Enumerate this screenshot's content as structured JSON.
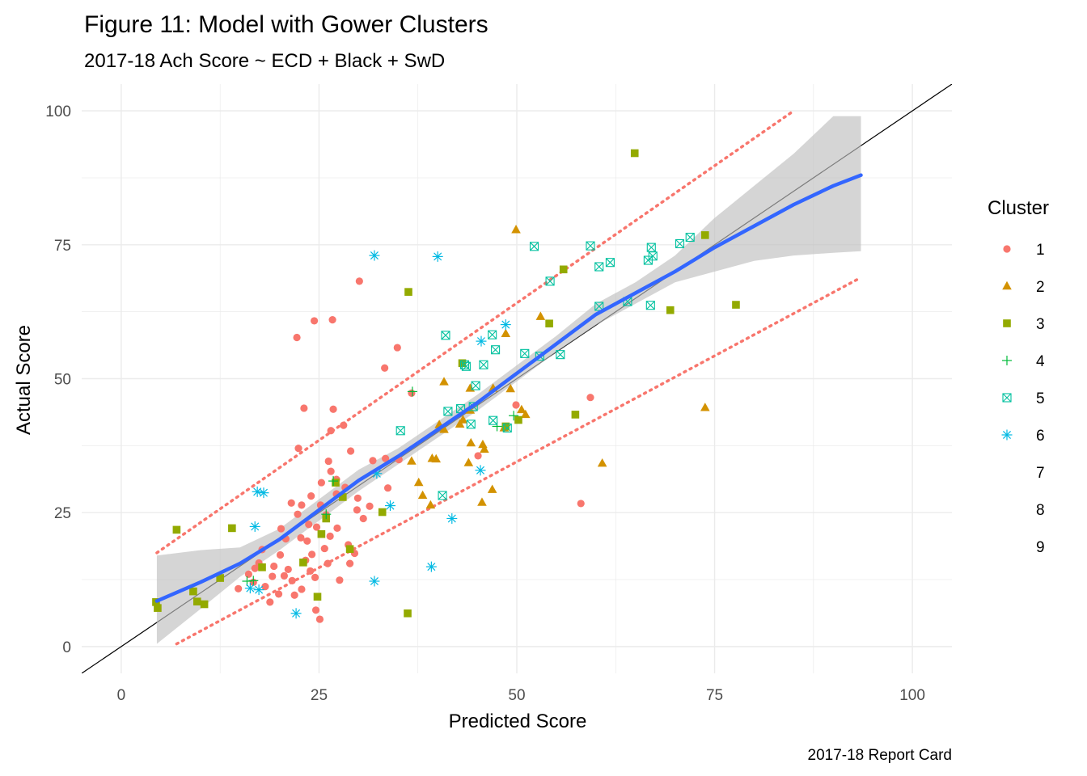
{
  "chart_data": {
    "type": "scatter",
    "title": "Figure 11: Model with Gower Clusters",
    "subtitle": "2017-18 Ach Score ~ ECD + Black + SwD",
    "xlabel": "Predicted Score",
    "ylabel": "Actual Score",
    "caption": "2017-18 Report Card",
    "xlim": [
      -5,
      105
    ],
    "ylim": [
      -5,
      105
    ],
    "x_ticks": [
      "0",
      "25",
      "50",
      "75",
      "100"
    ],
    "y_ticks": [
      "0",
      "25",
      "50",
      "75",
      "100"
    ],
    "grid": true,
    "legend": {
      "title": "Cluster",
      "placement": "right",
      "entries": [
        {
          "label": "1",
          "shape": "circle",
          "color": "#F8766D"
        },
        {
          "label": "2",
          "shape": "triangle",
          "color": "#D39200"
        },
        {
          "label": "3",
          "shape": "square",
          "color": "#93AA00"
        },
        {
          "label": "4",
          "shape": "plus",
          "color": "#00BA38"
        },
        {
          "label": "5",
          "shape": "boxx",
          "color": "#00C19F"
        },
        {
          "label": "6",
          "shape": "asterisk",
          "color": "#00B9E3"
        },
        {
          "label": "7",
          "shape": "none",
          "color": "#619CFF"
        },
        {
          "label": "8",
          "shape": "none",
          "color": "#DB72FB"
        },
        {
          "label": "9",
          "shape": "none",
          "color": "#FF61C3"
        }
      ]
    },
    "reference_line": {
      "slope": 1,
      "intercept": 0,
      "color": "#000000"
    },
    "smooth": {
      "color": "#3366FF",
      "band_color": "#BFBFBF",
      "x": [
        4.5,
        10,
        15,
        20,
        25,
        30,
        35,
        40,
        45,
        50,
        55,
        60,
        65,
        70,
        75,
        80,
        85,
        90,
        93.5
      ],
      "y": [
        8.5,
        12,
        15.5,
        20,
        25.5,
        31,
        35.5,
        40.5,
        45.5,
        51,
        56.5,
        62,
        66,
        70,
        74.5,
        78.5,
        82.5,
        86,
        88
      ],
      "lower": [
        0.5,
        7,
        13,
        18,
        23.5,
        29,
        34,
        39,
        44,
        49.5,
        55,
        60,
        64,
        68,
        70,
        72,
        73,
        73.5,
        73.8
      ],
      "upper": [
        17,
        18,
        18.5,
        22,
        27.5,
        33,
        37,
        42,
        47,
        52.5,
        58,
        64,
        68,
        73,
        80,
        86,
        92,
        99,
        99
      ]
    },
    "prediction_bounds": {
      "color": "#F8766D",
      "upper": {
        "x": [
          4.5,
          85
        ],
        "y": [
          17.5,
          100
        ]
      },
      "lower": {
        "x": [
          7,
          93
        ],
        "y": [
          0.5,
          68.5
        ]
      }
    },
    "series": [
      {
        "name": "1",
        "points": [
          [
            14.8,
            10.8
          ],
          [
            16.1,
            13.5
          ],
          [
            16.7,
            12
          ],
          [
            17.4,
            15.6
          ],
          [
            18.2,
            11.2
          ],
          [
            19.3,
            15
          ],
          [
            20.1,
            17.1
          ],
          [
            20.8,
            20.1
          ],
          [
            21.5,
            26.8
          ],
          [
            22.3,
            24.7
          ],
          [
            22.8,
            26.4
          ],
          [
            23.5,
            19.7
          ],
          [
            24.1,
            17.2
          ],
          [
            24.7,
            22.3
          ],
          [
            25.3,
            30.6
          ],
          [
            25.9,
            24.6
          ],
          [
            26.5,
            32.7
          ],
          [
            27.2,
            28.5
          ],
          [
            28.1,
            41.3
          ],
          [
            29,
            36.5
          ],
          [
            29.8,
            25.5
          ],
          [
            21.6,
            12.3
          ],
          [
            22.8,
            10.7
          ],
          [
            23.9,
            14.1
          ],
          [
            24.6,
            6.8
          ],
          [
            25.1,
            5.1
          ],
          [
            26.1,
            15.5
          ],
          [
            27.6,
            12.4
          ],
          [
            28.7,
            19
          ],
          [
            20.2,
            22
          ],
          [
            21.1,
            14.4
          ],
          [
            23.1,
            44.5
          ],
          [
            22.4,
            37
          ],
          [
            26.5,
            40.3
          ],
          [
            26.8,
            44.3
          ],
          [
            24.4,
            60.8
          ],
          [
            26.7,
            61
          ],
          [
            22.2,
            57.7
          ],
          [
            30.1,
            68.2
          ],
          [
            34.9,
            55.8
          ],
          [
            33.3,
            52
          ],
          [
            31.8,
            34.7
          ],
          [
            35.1,
            34.9
          ],
          [
            33.4,
            35.1
          ],
          [
            36.7,
            47.3
          ],
          [
            45.1,
            35.6
          ],
          [
            49.9,
            45.1
          ],
          [
            59.3,
            46.5
          ],
          [
            58.1,
            26.7
          ],
          [
            29.9,
            27.7
          ],
          [
            18.8,
            8.3
          ],
          [
            17.8,
            18.1
          ],
          [
            23.3,
            16.1
          ],
          [
            25.7,
            18.3
          ],
          [
            19.9,
            9.8
          ],
          [
            27.2,
            31.2
          ],
          [
            29.5,
            17.4
          ],
          [
            31.4,
            26.2
          ],
          [
            24,
            28.1
          ],
          [
            16.9,
            14.6
          ],
          [
            19.1,
            13.1
          ],
          [
            21.9,
            9.6
          ],
          [
            25.2,
            26.4
          ],
          [
            26.2,
            34.6
          ],
          [
            28.3,
            29.7
          ],
          [
            23.7,
            22.8
          ],
          [
            30.6,
            23.9
          ],
          [
            33.7,
            29.6
          ],
          [
            27.3,
            22.1
          ],
          [
            22.7,
            20.3
          ],
          [
            20.6,
            13.2
          ],
          [
            24.5,
            12.9
          ],
          [
            28.9,
            15.5
          ],
          [
            26.4,
            20.6
          ]
        ]
      },
      {
        "name": "2",
        "points": [
          [
            49.9,
            77.8
          ],
          [
            53,
            61.6
          ],
          [
            48.6,
            58.4
          ],
          [
            44.1,
            48.2
          ],
          [
            43.2,
            42.3
          ],
          [
            42.8,
            41.5
          ],
          [
            40.8,
            49.4
          ],
          [
            39.3,
            35.1
          ],
          [
            39.8,
            35
          ],
          [
            37.6,
            30.6
          ],
          [
            38.1,
            28.2
          ],
          [
            39.1,
            26.4
          ],
          [
            36.7,
            34.6
          ],
          [
            44.2,
            38
          ],
          [
            43.9,
            34.3
          ],
          [
            45.7,
            37.7
          ],
          [
            45.9,
            36.8
          ],
          [
            46.9,
            29.3
          ],
          [
            45.6,
            26.9
          ],
          [
            48.4,
            40.8
          ],
          [
            51.1,
            43.3
          ],
          [
            49.2,
            48.1
          ],
          [
            47,
            48.2
          ],
          [
            50.6,
            44.2
          ],
          [
            40.2,
            41.4
          ],
          [
            60.8,
            34.2
          ],
          [
            73.8,
            44.6
          ],
          [
            40.8,
            40.5
          ],
          [
            44.1,
            44.1
          ]
        ]
      },
      {
        "name": "3",
        "points": [
          [
            7,
            21.8
          ],
          [
            4.4,
            8.3
          ],
          [
            4.6,
            7.2
          ],
          [
            9.1,
            10.3
          ],
          [
            9.6,
            8.4
          ],
          [
            10.5,
            7.9
          ],
          [
            12.5,
            12.8
          ],
          [
            14,
            22.1
          ],
          [
            17.8,
            14.8
          ],
          [
            23,
            15.7
          ],
          [
            24.8,
            9.3
          ],
          [
            25.3,
            21
          ],
          [
            25.9,
            23.9
          ],
          [
            27.1,
            30.6
          ],
          [
            28,
            27.9
          ],
          [
            28.9,
            18.2
          ],
          [
            33,
            25.1
          ],
          [
            36.3,
            66.2
          ],
          [
            36.2,
            6.2
          ],
          [
            43.1,
            52.9
          ],
          [
            48.6,
            41.1
          ],
          [
            50.2,
            42.3
          ],
          [
            54.1,
            60.3
          ],
          [
            55.9,
            70.4
          ],
          [
            57.4,
            43.3
          ],
          [
            64.9,
            92.1
          ],
          [
            69.4,
            62.8
          ],
          [
            73.8,
            76.8
          ],
          [
            77.7,
            63.8
          ]
        ]
      },
      {
        "name": "4",
        "points": [
          [
            36.8,
            47.6
          ],
          [
            49.6,
            43.1
          ],
          [
            16.7,
            12.3
          ],
          [
            15.9,
            12.2
          ],
          [
            26.8,
            30.9
          ],
          [
            25.9,
            24.7
          ],
          [
            47.5,
            41.1
          ]
        ]
      },
      {
        "name": "5",
        "points": [
          [
            41,
            58.1
          ],
          [
            43.4,
            52.6
          ],
          [
            44.8,
            48.7
          ],
          [
            45.8,
            52.6
          ],
          [
            46.9,
            58.2
          ],
          [
            47.3,
            55.4
          ],
          [
            48.8,
            40.8
          ],
          [
            51,
            54.7
          ],
          [
            52.2,
            74.7
          ],
          [
            52.9,
            54.2
          ],
          [
            54.2,
            68.2
          ],
          [
            55.5,
            54.5
          ],
          [
            59.3,
            74.8
          ],
          [
            60.4,
            63.5
          ],
          [
            60.4,
            70.9
          ],
          [
            61.8,
            71.7
          ],
          [
            64,
            64.4
          ],
          [
            66.6,
            72.1
          ],
          [
            67,
            74.5
          ],
          [
            67.2,
            72.9
          ],
          [
            66.9,
            63.7
          ],
          [
            70.6,
            75.2
          ],
          [
            71.9,
            76.4
          ],
          [
            41.3,
            43.9
          ],
          [
            42.9,
            44.4
          ],
          [
            43.6,
            52.3
          ],
          [
            44.2,
            41.5
          ],
          [
            44.5,
            44.8
          ],
          [
            47,
            42.2
          ],
          [
            35.3,
            40.3
          ],
          [
            40.6,
            28.2
          ]
        ]
      },
      {
        "name": "6",
        "points": [
          [
            32,
            73
          ],
          [
            40,
            72.8
          ],
          [
            48.6,
            60.1
          ],
          [
            45.5,
            57
          ],
          [
            32.3,
            32.3
          ],
          [
            34,
            26.3
          ],
          [
            45.4,
            32.9
          ],
          [
            41.8,
            23.9
          ],
          [
            32,
            12.2
          ],
          [
            39.2,
            14.9
          ],
          [
            22.1,
            6.2
          ],
          [
            17.2,
            28.9
          ],
          [
            18,
            28.7
          ],
          [
            16.9,
            22.4
          ],
          [
            16.3,
            10.9
          ],
          [
            17.4,
            10.6
          ]
        ]
      }
    ]
  }
}
